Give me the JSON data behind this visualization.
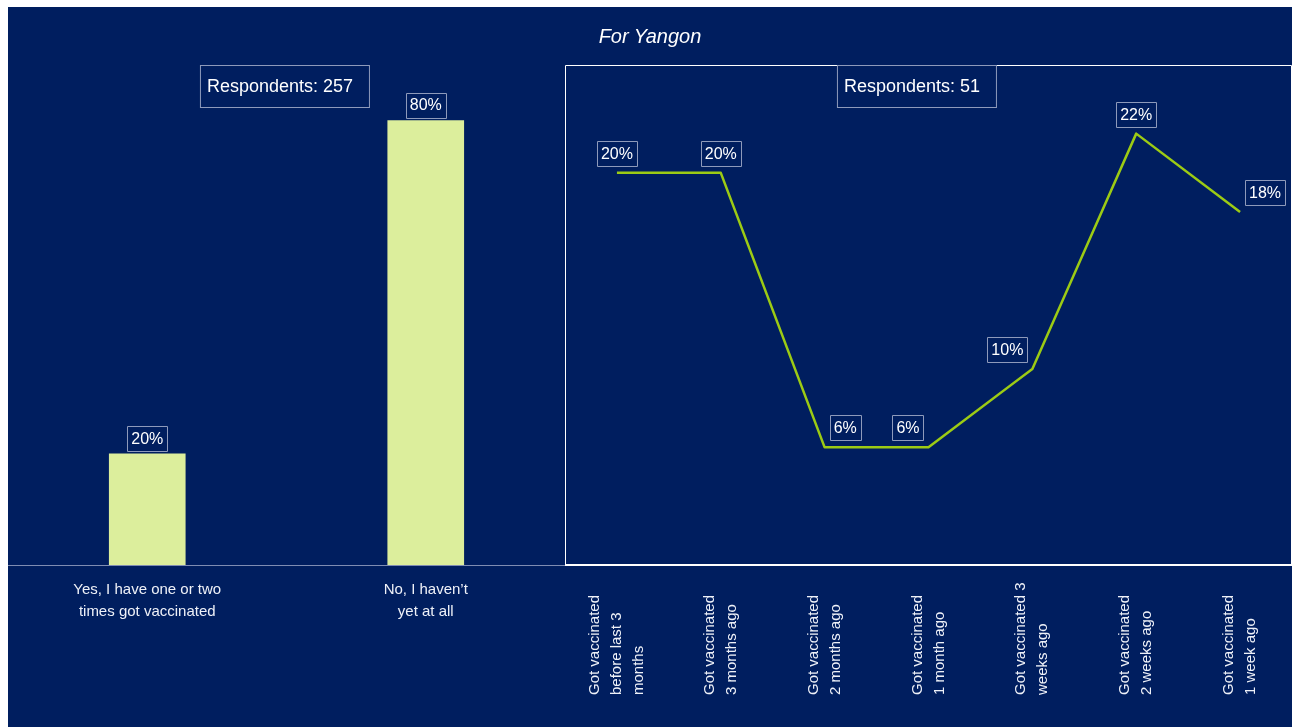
{
  "chart_data": [
    {
      "type": "bar",
      "categories": [
        "Yes, I have one or two\ntimes got vaccinated",
        "No, I haven’t\nyet at all"
      ],
      "values": [
        20,
        80
      ],
      "value_labels": [
        "20%",
        "80%"
      ],
      "color": "#dcee9c",
      "ylim": [
        0,
        90
      ],
      "tick_labels": "x",
      "annotations": [
        "Respondents: 257"
      ]
    },
    {
      "type": "line",
      "title": "For Yangon",
      "categories": [
        "Got vaccinated\nbefore last 3\nmonths",
        "Got vaccinated\n3 months ago",
        "Got vaccinated\n2 months ago",
        "Got vaccinated\n1 month ago",
        "Got vaccinated 3\nweeks ago",
        "Got vaccinated\n2 weeks ago",
        "Got vaccinated\n1 week ago"
      ],
      "values": [
        20,
        20,
        6,
        6,
        10,
        22,
        18
      ],
      "value_labels": [
        "20%",
        "20%",
        "6%",
        "6%",
        "10%",
        "22%",
        "18%"
      ],
      "color": "#9ccb14",
      "ylim": [
        0,
        25.5
      ],
      "tick_labels": "x",
      "annotations": [
        "Respondents: 51"
      ]
    }
  ]
}
